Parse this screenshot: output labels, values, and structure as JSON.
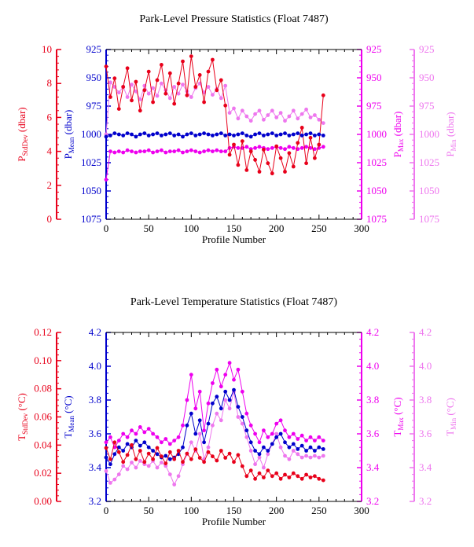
{
  "colors": {
    "stddev": "#e8001a",
    "mean": "#0000cc",
    "max": "#ee00ee",
    "min": "#ee77ee",
    "axis": "#000000"
  },
  "chart_data": [
    {
      "type": "line",
      "title": "Park-Level Pressure Statistics (Float 7487)",
      "xlabel": "Profile Number",
      "xlim": [
        0,
        300
      ],
      "xticks": [
        "0",
        "50",
        "100",
        "150",
        "200",
        "250",
        "300"
      ],
      "grid": false,
      "axes": {
        "stddev": {
          "base": "P",
          "sub": "StdDev",
          "unit": " (dbar)",
          "range": [
            0,
            10
          ],
          "reversed": false,
          "ticks": [
            "0",
            "2",
            "4",
            "6",
            "8",
            "10"
          ]
        },
        "mean": {
          "base": "P",
          "sub": "Mean",
          "unit": " (dbar)",
          "range": [
            925,
            1075
          ],
          "reversed": true,
          "ticks": [
            "925",
            "950",
            "975",
            "1000",
            "1025",
            "1050",
            "1075"
          ]
        },
        "max": {
          "base": "P",
          "sub": "Max",
          "unit": " (dbar)",
          "range": [
            925,
            1075
          ],
          "reversed": true,
          "ticks": [
            "925",
            "950",
            "975",
            "1000",
            "1025",
            "1050",
            "1075"
          ]
        },
        "min": {
          "base": "P",
          "sub": "Min",
          "unit": " (dbar)",
          "range": [
            925,
            1075
          ],
          "reversed": true,
          "ticks": [
            "925",
            "950",
            "975",
            "1000",
            "1025",
            "1050",
            "1075"
          ]
        }
      },
      "series": [
        {
          "key": "min",
          "x": [
            0,
            5,
            10,
            15,
            20,
            25,
            30,
            35,
            40,
            45,
            50,
            55,
            60,
            65,
            70,
            75,
            80,
            85,
            90,
            95,
            100,
            105,
            110,
            115,
            120,
            125,
            130,
            135,
            140,
            145,
            150,
            155,
            160,
            165,
            170,
            175,
            180,
            185,
            190,
            195,
            200,
            205,
            210,
            215,
            220,
            225,
            230,
            235,
            240,
            245,
            250,
            255
          ],
          "y": [
            1000,
            954,
            958,
            963,
            958,
            967,
            956,
            962,
            969,
            957,
            964,
            959,
            966,
            955,
            961,
            968,
            958,
            964,
            956,
            962,
            967,
            959,
            955,
            963,
            958,
            965,
            960,
            968,
            957,
            981,
            977,
            986,
            979,
            984,
            988,
            982,
            979,
            987,
            983,
            979,
            985,
            981,
            988,
            984,
            979,
            986,
            982,
            978,
            985,
            983,
            987,
            990
          ]
        },
        {
          "key": "max",
          "x": [
            0,
            5,
            10,
            15,
            20,
            25,
            30,
            35,
            40,
            45,
            50,
            55,
            60,
            65,
            70,
            75,
            80,
            85,
            90,
            95,
            100,
            105,
            110,
            115,
            120,
            125,
            130,
            135,
            140,
            145,
            150,
            155,
            160,
            165,
            170,
            175,
            180,
            185,
            190,
            195,
            200,
            205,
            210,
            215,
            220,
            225,
            230,
            235,
            240,
            245,
            250,
            255
          ],
          "y": [
            1040,
            1015,
            1016,
            1015,
            1016,
            1014,
            1015,
            1016,
            1015,
            1015,
            1014,
            1016,
            1015,
            1014,
            1016,
            1015,
            1015,
            1014,
            1016,
            1015,
            1014,
            1015,
            1016,
            1015,
            1014,
            1015,
            1014,
            1015,
            1015,
            1012,
            1011,
            1012,
            1012,
            1011,
            1013,
            1012,
            1011,
            1012,
            1013,
            1012,
            1011,
            1012,
            1013,
            1011,
            1012,
            1013,
            1012,
            1011,
            1012,
            1013,
            1012,
            1011
          ]
        },
        {
          "key": "stddev",
          "x": [
            0,
            5,
            10,
            15,
            20,
            25,
            30,
            35,
            40,
            45,
            50,
            55,
            60,
            65,
            70,
            75,
            80,
            85,
            90,
            95,
            100,
            105,
            110,
            115,
            120,
            125,
            130,
            135,
            140,
            145,
            150,
            155,
            160,
            165,
            170,
            175,
            180,
            185,
            190,
            195,
            200,
            205,
            210,
            215,
            220,
            225,
            230,
            235,
            240,
            245,
            250,
            255
          ],
          "y": [
            9.0,
            7.2,
            8.3,
            6.5,
            7.8,
            8.9,
            7.0,
            8.1,
            6.4,
            7.6,
            8.7,
            6.9,
            8.2,
            9.1,
            7.4,
            8.6,
            6.8,
            8.0,
            9.3,
            7.3,
            9.6,
            7.8,
            8.5,
            6.9,
            8.7,
            9.4,
            7.6,
            8.2,
            6.7,
            3.8,
            4.4,
            3.2,
            4.6,
            2.9,
            4.0,
            3.5,
            2.8,
            4.1,
            3.3,
            2.7,
            4.3,
            3.6,
            2.8,
            3.9,
            3.1,
            4.5,
            5.4,
            3.3,
            4.8,
            3.6,
            4.4,
            7.3
          ]
        },
        {
          "key": "mean",
          "x": [
            0,
            5,
            10,
            15,
            20,
            25,
            30,
            35,
            40,
            45,
            50,
            55,
            60,
            65,
            70,
            75,
            80,
            85,
            90,
            95,
            100,
            105,
            110,
            115,
            120,
            125,
            130,
            135,
            140,
            145,
            150,
            155,
            160,
            165,
            170,
            175,
            180,
            185,
            190,
            195,
            200,
            205,
            210,
            215,
            220,
            225,
            230,
            235,
            240,
            245,
            250,
            255
          ],
          "y": [
            1002,
            1001,
            999,
            1000,
            1001,
            999,
            1000,
            1002,
            1000,
            999,
            1001,
            1000,
            999,
            1001,
            1000,
            999,
            1001,
            1000,
            1002,
            1000,
            999,
            1001,
            1000,
            999,
            1000,
            1001,
            1000,
            999,
            1001,
            1000,
            1001,
            1000,
            999,
            1001,
            1002,
            1000,
            999,
            1001,
            1000,
            999,
            1001,
            1000,
            999,
            1001,
            1000,
            999,
            1001,
            1000,
            999,
            1001,
            1000,
            1001
          ]
        }
      ]
    },
    {
      "type": "line",
      "title": "Park-Level Temperature Statistics (Float 7487)",
      "xlabel": "Profile Number",
      "xlim": [
        0,
        300
      ],
      "xticks": [
        "0",
        "50",
        "100",
        "150",
        "200",
        "250",
        "300"
      ],
      "grid": false,
      "axes": {
        "stddev": {
          "base": "T",
          "sub": "StdDev",
          "unit": " (°C)",
          "range": [
            0,
            0.12
          ],
          "reversed": false,
          "ticks": [
            "0.00",
            "0.02",
            "0.04",
            "0.06",
            "0.08",
            "0.10",
            "0.12"
          ]
        },
        "mean": {
          "base": "T",
          "sub": "Mean",
          "unit": " (°C)",
          "range": [
            3.2,
            4.2
          ],
          "reversed": false,
          "ticks": [
            "3.2",
            "3.4",
            "3.6",
            "3.8",
            "4.0",
            "4.2"
          ]
        },
        "max": {
          "base": "T",
          "sub": "Max",
          "unit": " (°C)",
          "range": [
            3.2,
            4.2
          ],
          "reversed": false,
          "ticks": [
            "3.2",
            "3.4",
            "3.6",
            "3.8",
            "4.0",
            "4.2"
          ]
        },
        "min": {
          "base": "T",
          "sub": "Min",
          "unit": " (°C)",
          "range": [
            3.2,
            4.2
          ],
          "reversed": false,
          "ticks": [
            "3.2",
            "3.4",
            "3.6",
            "3.8",
            "4.0",
            "4.2"
          ]
        }
      },
      "series": [
        {
          "key": "min",
          "x": [
            0,
            5,
            10,
            15,
            20,
            25,
            30,
            35,
            40,
            45,
            50,
            55,
            60,
            65,
            70,
            75,
            80,
            85,
            90,
            95,
            100,
            105,
            110,
            115,
            120,
            125,
            130,
            135,
            140,
            145,
            150,
            155,
            160,
            165,
            170,
            175,
            180,
            185,
            190,
            195,
            200,
            205,
            210,
            215,
            220,
            225,
            230,
            235,
            240,
            245,
            250,
            255
          ],
          "y": [
            3.38,
            3.31,
            3.33,
            3.36,
            3.41,
            3.39,
            3.43,
            3.4,
            3.44,
            3.42,
            3.41,
            3.44,
            3.4,
            3.43,
            3.41,
            3.36,
            3.3,
            3.35,
            3.42,
            3.48,
            3.55,
            3.5,
            3.6,
            3.45,
            3.52,
            3.65,
            3.72,
            3.68,
            3.8,
            3.75,
            3.85,
            3.7,
            3.66,
            3.58,
            3.5,
            3.42,
            3.46,
            3.4,
            3.48,
            3.54,
            3.6,
            3.52,
            3.47,
            3.45,
            3.5,
            3.48,
            3.46,
            3.47,
            3.46,
            3.47,
            3.46,
            3.47
          ]
        },
        {
          "key": "max",
          "x": [
            0,
            5,
            10,
            15,
            20,
            25,
            30,
            35,
            40,
            45,
            50,
            55,
            60,
            65,
            70,
            75,
            80,
            85,
            90,
            95,
            100,
            105,
            110,
            115,
            120,
            125,
            130,
            135,
            140,
            145,
            150,
            155,
            160,
            165,
            170,
            175,
            180,
            185,
            190,
            195,
            200,
            205,
            210,
            215,
            220,
            225,
            230,
            235,
            240,
            245,
            250,
            255
          ],
          "y": [
            3.55,
            3.58,
            3.52,
            3.56,
            3.6,
            3.58,
            3.62,
            3.6,
            3.64,
            3.61,
            3.63,
            3.6,
            3.58,
            3.55,
            3.57,
            3.54,
            3.56,
            3.58,
            3.65,
            3.8,
            3.95,
            3.75,
            3.85,
            3.62,
            3.78,
            3.9,
            3.98,
            3.88,
            3.95,
            4.02,
            3.92,
            3.98,
            3.85,
            3.72,
            3.65,
            3.6,
            3.55,
            3.62,
            3.58,
            3.6,
            3.66,
            3.68,
            3.62,
            3.58,
            3.6,
            3.57,
            3.59,
            3.56,
            3.58,
            3.56,
            3.58,
            3.56
          ]
        },
        {
          "key": "mean",
          "x": [
            0,
            5,
            10,
            15,
            20,
            25,
            30,
            35,
            40,
            45,
            50,
            55,
            60,
            65,
            70,
            75,
            80,
            85,
            90,
            95,
            100,
            105,
            110,
            115,
            120,
            125,
            130,
            135,
            140,
            145,
            150,
            155,
            160,
            165,
            170,
            175,
            180,
            185,
            190,
            195,
            200,
            205,
            210,
            215,
            220,
            225,
            230,
            235,
            240,
            245,
            250,
            255
          ],
          "y": [
            3.46,
            3.42,
            3.48,
            3.52,
            3.5,
            3.54,
            3.52,
            3.56,
            3.53,
            3.55,
            3.52,
            3.5,
            3.48,
            3.46,
            3.47,
            3.45,
            3.46,
            3.48,
            3.52,
            3.65,
            3.72,
            3.6,
            3.68,
            3.55,
            3.66,
            3.78,
            3.82,
            3.75,
            3.85,
            3.8,
            3.86,
            3.76,
            3.7,
            3.62,
            3.55,
            3.5,
            3.48,
            3.52,
            3.5,
            3.54,
            3.58,
            3.6,
            3.55,
            3.52,
            3.54,
            3.51,
            3.53,
            3.5,
            3.52,
            3.5,
            3.52,
            3.51
          ]
        },
        {
          "key": "stddev",
          "x": [
            0,
            5,
            10,
            15,
            20,
            25,
            30,
            35,
            40,
            45,
            50,
            55,
            60,
            65,
            70,
            75,
            80,
            85,
            90,
            95,
            100,
            105,
            110,
            115,
            120,
            125,
            130,
            135,
            140,
            145,
            150,
            155,
            160,
            165,
            170,
            175,
            180,
            185,
            190,
            195,
            200,
            205,
            210,
            215,
            220,
            225,
            230,
            235,
            240,
            245,
            250,
            255
          ],
          "y": [
            0.038,
            0.03,
            0.042,
            0.035,
            0.028,
            0.033,
            0.04,
            0.03,
            0.036,
            0.028,
            0.034,
            0.03,
            0.038,
            0.032,
            0.027,
            0.035,
            0.03,
            0.036,
            0.028,
            0.034,
            0.03,
            0.037,
            0.031,
            0.028,
            0.035,
            0.032,
            0.029,
            0.036,
            0.031,
            0.034,
            0.028,
            0.033,
            0.025,
            0.018,
            0.022,
            0.016,
            0.02,
            0.017,
            0.022,
            0.018,
            0.02,
            0.016,
            0.019,
            0.017,
            0.02,
            0.018,
            0.016,
            0.019,
            0.017,
            0.018,
            0.016,
            0.015
          ]
        }
      ]
    }
  ]
}
